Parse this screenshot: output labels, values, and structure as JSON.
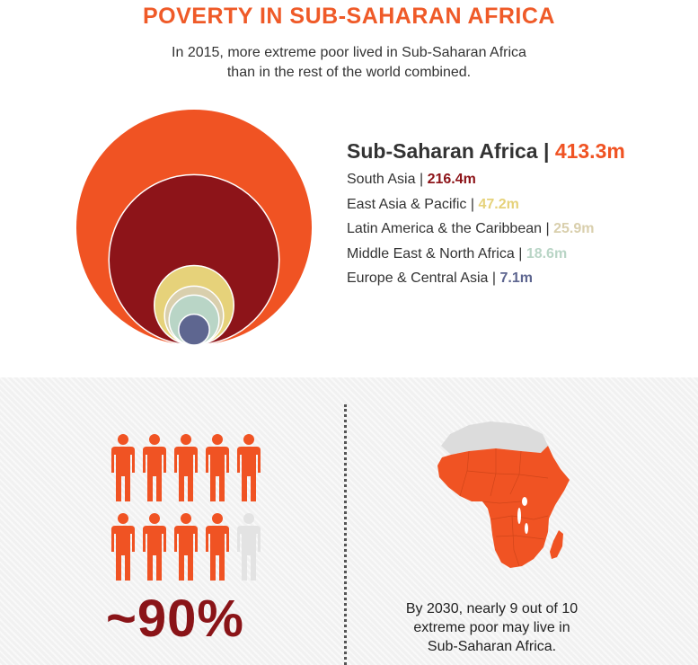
{
  "header": {
    "title": "POVERTY IN SUB-SAHARAN AFRICA",
    "subtitle_line1": "In 2015, more extreme poor lived in Sub-Saharan Africa",
    "subtitle_line2": "than in the rest of the world combined."
  },
  "chart_data": [
    {
      "type": "bubble",
      "unit": "m",
      "series": [
        {
          "name": "Sub-Saharan Africa",
          "value": 413.3,
          "label": "413.3m",
          "color": "#f05323"
        },
        {
          "name": "South Asia",
          "value": 216.4,
          "label": "216.4m",
          "color": "#8d1419"
        },
        {
          "name": "East Asia & Pacific",
          "value": 47.2,
          "label": "47.2m",
          "color": "#e6d27a"
        },
        {
          "name": "Latin America & the Caribbean",
          "value": 25.9,
          "label": "25.9m",
          "color": "#d9cfad"
        },
        {
          "name": "Middle East & North Africa",
          "value": 18.6,
          "label": "18.6m",
          "color": "#b9d5c6"
        },
        {
          "name": "Europe & Central Asia",
          "value": 7.1,
          "label": "7.1m",
          "color": "#5e6690"
        }
      ]
    },
    {
      "type": "pictogram",
      "total": 10,
      "filled": 9,
      "label": "~90%",
      "fill_color": "#f05323",
      "empty_color": "#e3e3e3"
    }
  ],
  "map": {
    "highlight_color": "#f05323",
    "other_color": "#dcdcdc",
    "caption_line1": "By 2030, nearly 9 out of 10",
    "caption_line2": "extreme poor may live in",
    "caption_line3": "Sub-Saharan Africa."
  },
  "separator": "|"
}
